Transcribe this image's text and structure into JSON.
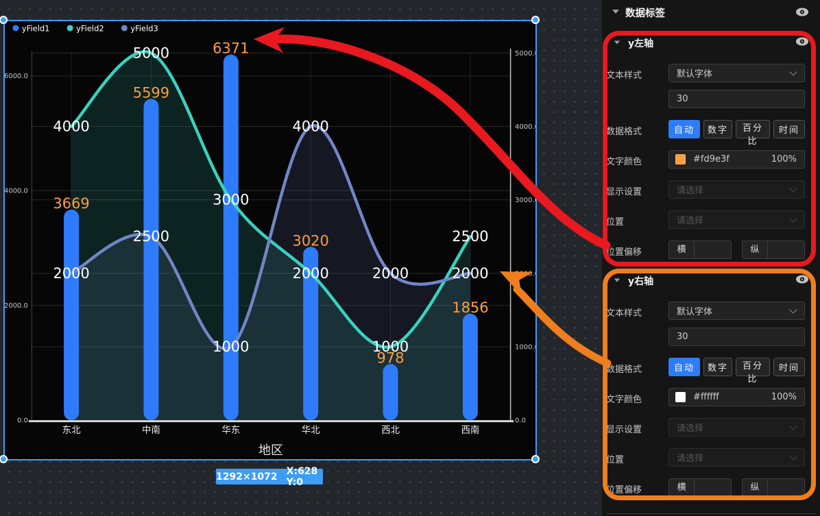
{
  "badge": {
    "size": "1292×1072",
    "pos": "X:628 Y:0"
  },
  "chart_data": {
    "type": "combo",
    "xlabel": "地区",
    "categories": [
      "东北",
      "中南",
      "华东",
      "华北",
      "西北",
      "西南"
    ],
    "series": [
      {
        "name": "yField1",
        "type": "bar",
        "axis": "left",
        "color": "#2e7cfd",
        "label_color": "#fd9e3f",
        "values": [
          3669,
          5599,
          6371,
          3020,
          978,
          1856
        ]
      },
      {
        "name": "yField2",
        "type": "line",
        "axis": "right",
        "color": "#3ad1be",
        "label_color": "#ffffff",
        "values": [
          4000,
          5000,
          3000,
          2000,
          1000,
          2500
        ]
      },
      {
        "name": "yField3",
        "type": "line",
        "axis": "right",
        "color": "#7186c6",
        "label_color": "#ffffff",
        "values": [
          2000,
          2500,
          1000,
          4000,
          2000,
          2000
        ]
      }
    ],
    "left_axis": {
      "max": 6000,
      "tick_step": 2000,
      "tick_labels": [
        "0.0",
        "2000.0",
        "4000.0",
        "6000.0"
      ]
    },
    "right_axis": {
      "max": 5000,
      "tick_step": 1000,
      "tick_labels": [
        "0.0",
        "1000.0",
        "2000.0",
        "3000.0",
        "4000.0",
        "5000.0"
      ]
    },
    "grid": true,
    "legend_position": "top-left"
  },
  "panel": {
    "header": {
      "label": "数据标签"
    },
    "row_labels": {
      "text_style": "文本样式",
      "data_format": "数据格式",
      "text_color": "文字颜色",
      "display": "显示设置",
      "position": "位置",
      "offset": "位置偏移",
      "offset_h": "横",
      "offset_v": "纵"
    },
    "values": {
      "font": "默认字体",
      "font_size": "30",
      "formats": [
        "自动",
        "数字",
        "百分比",
        "时间"
      ],
      "active_format": "自动",
      "placeholder": "请选择",
      "opacity": "100%"
    },
    "sections": [
      {
        "label": "y左轴",
        "color_hex": "#fd9e3f"
      },
      {
        "label": "y右轴",
        "color_hex": "#ffffff"
      }
    ],
    "accent": "#2e7cf6"
  },
  "annotations": {
    "red": "#e8191f",
    "orange": "#ef7e1e"
  }
}
